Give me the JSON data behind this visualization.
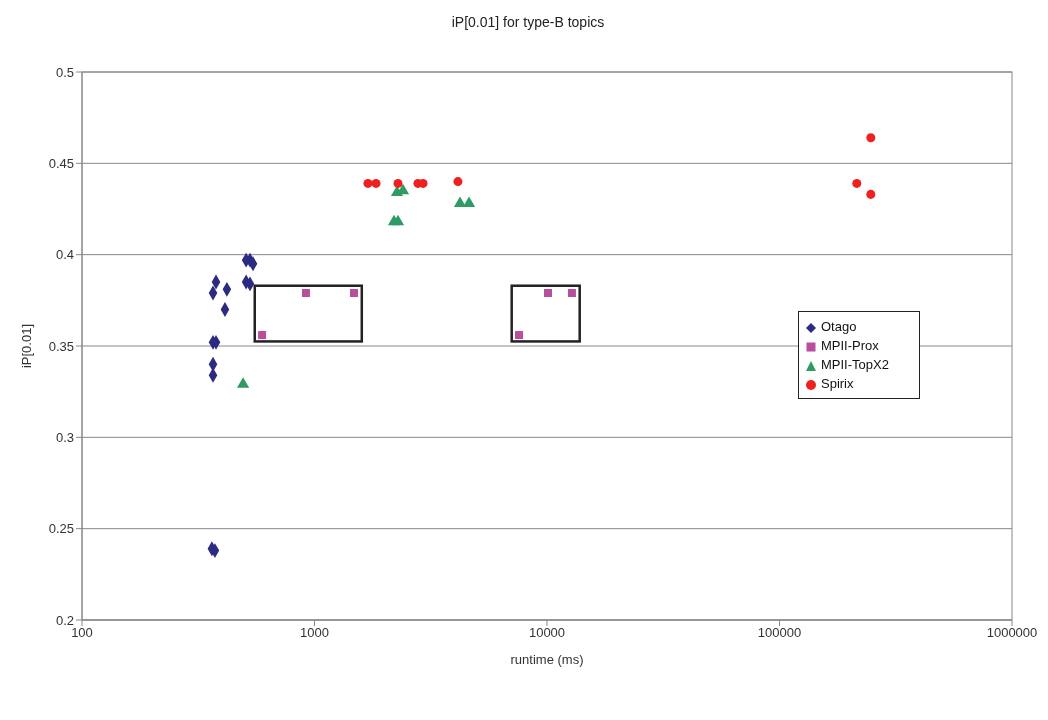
{
  "chart_data": {
    "type": "scatter",
    "title": "iP[0.01] for type-B topics",
    "xlabel": "runtime (ms)",
    "ylabel": "iP[0.01]",
    "log": "x",
    "xlim": [
      100,
      1000000
    ],
    "xticks": [
      100,
      1000,
      10000,
      100000,
      1000000
    ],
    "ylim": [
      0.2,
      0.5
    ],
    "yticks": [
      0.2,
      0.25,
      0.3,
      0.35,
      0.4,
      0.45,
      0.5
    ],
    "grid": "y",
    "legend": "right",
    "series": [
      {
        "name": "Otago",
        "color": "#2b2b80",
        "marker": "diamond",
        "x": [
          362,
          373,
          366,
          377,
          420,
          412,
          366,
          377,
          366,
          366,
          508,
          528,
          544,
          508,
          528
        ],
        "values": [
          0.239,
          0.238,
          0.379,
          0.385,
          0.381,
          0.37,
          0.352,
          0.352,
          0.34,
          0.334,
          0.397,
          0.397,
          0.395,
          0.385,
          0.384
        ]
      },
      {
        "name": "MPII-Prox",
        "color": "#b84e9e",
        "marker": "square",
        "x": [
          595,
          919,
          1479,
          7580,
          10100,
          12800
        ],
        "values": [
          0.356,
          0.379,
          0.379,
          0.356,
          0.379,
          0.379
        ]
      },
      {
        "name": "MPII-TopX2",
        "color": "#2e9a64",
        "marker": "triangle",
        "x": [
          493,
          2264,
          2402,
          2198,
          2286,
          4225,
          4620
        ],
        "values": [
          0.329,
          0.434,
          0.435,
          0.418,
          0.418,
          0.428,
          0.428
        ]
      },
      {
        "name": "Spirix",
        "color": "#ee2020",
        "marker": "circle",
        "x": [
          1698,
          1839,
          2286,
          2786,
          2930,
          4140,
          215000,
          247000,
          247000
        ],
        "values": [
          0.439,
          0.439,
          0.439,
          0.439,
          0.439,
          0.44,
          0.439,
          0.464,
          0.433
        ]
      }
    ]
  }
}
